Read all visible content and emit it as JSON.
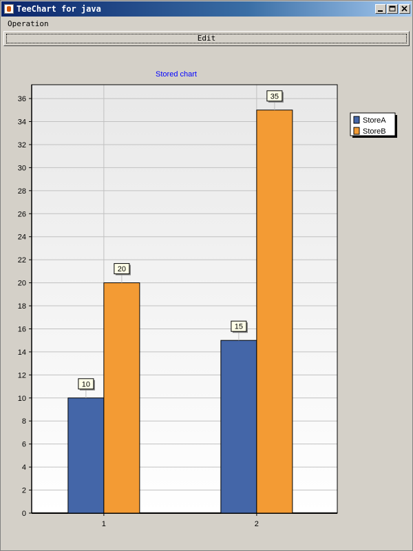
{
  "window": {
    "title": "TeeChart for java",
    "minimize_icon": "minimize-icon",
    "maximize_icon": "maximize-icon",
    "close_icon": "close-icon"
  },
  "menu": {
    "items": [
      "Operation"
    ]
  },
  "toolbar": {
    "edit_label": "Edit"
  },
  "chart_data": {
    "type": "bar",
    "title": "Stored chart",
    "categories": [
      "1",
      "2"
    ],
    "series": [
      {
        "name": "StoreA",
        "values": [
          10,
          15
        ],
        "color": "#4466a8"
      },
      {
        "name": "StoreB",
        "values": [
          20,
          35
        ],
        "color": "#f39b34"
      }
    ],
    "ylim": [
      0,
      37.2
    ],
    "yticks": [
      0,
      2,
      4,
      6,
      8,
      10,
      12,
      14,
      16,
      18,
      20,
      22,
      24,
      26,
      28,
      30,
      32,
      34,
      36
    ],
    "grid": true,
    "legend": "right",
    "title_color": "#0000ff"
  }
}
